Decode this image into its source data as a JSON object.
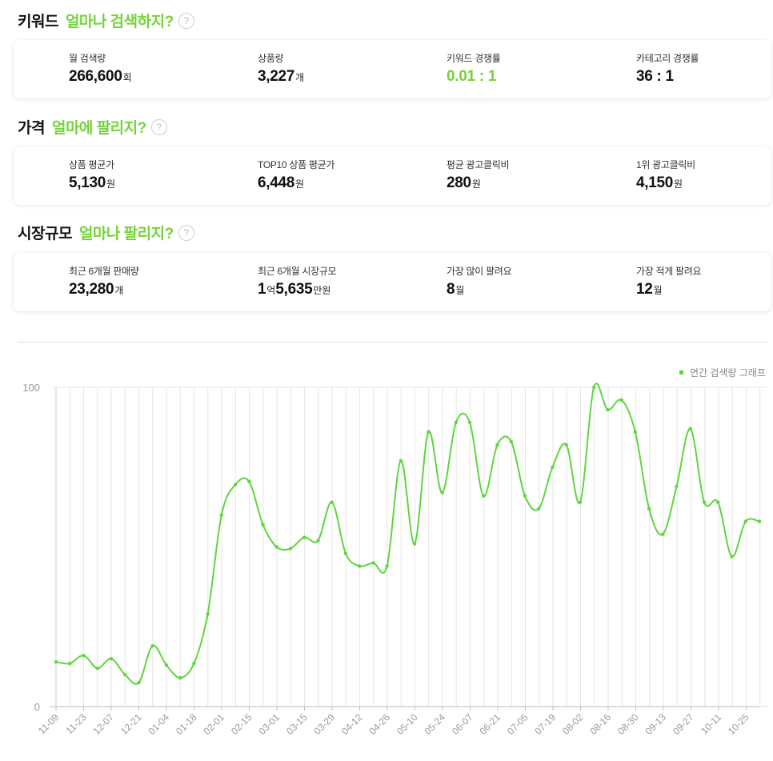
{
  "sections": {
    "keyword": {
      "title": "키워드",
      "accent": "얼마나 검색하지?",
      "help": "?"
    },
    "price": {
      "title": "가격",
      "accent": "얼마에 팔리지?",
      "help": "?"
    },
    "market": {
      "title": "시장규모",
      "accent": "얼마나 팔리지?",
      "help": "?"
    }
  },
  "keyword_stats": [
    {
      "label": "월 검색량",
      "value": "266,600",
      "unit": "회"
    },
    {
      "label": "상품량",
      "value": "3,227",
      "unit": "개"
    },
    {
      "label": "키워드 경쟁률",
      "value": "0.01 : 1",
      "unit": ""
    },
    {
      "label": "카테고리 경쟁률",
      "value": "36 : 1",
      "unit": ""
    }
  ],
  "price_stats": [
    {
      "label": "상품 평균가",
      "value": "5,130",
      "unit": "원"
    },
    {
      "label": "TOP10 상품 평균가",
      "value": "6,448",
      "unit": "원"
    },
    {
      "label": "평균 광고클릭비",
      "value": "280",
      "unit": "원"
    },
    {
      "label": "1위 광고클릭비",
      "value": "4,150",
      "unit": "원"
    }
  ],
  "market_stats": [
    {
      "label": "최근 6개월 판매량",
      "value": "23,280",
      "unit": "개"
    },
    {
      "label": "최근 6개월 시장규모",
      "value1": "1",
      "unit1": "억",
      "value2": "5,635",
      "unit2": "만원"
    },
    {
      "label": "가장 많이 팔려요",
      "value": "8",
      "unit": "월"
    },
    {
      "label": "가장 적게 팔려요",
      "value": "12",
      "unit": "월"
    }
  ],
  "colors": {
    "accent": "#76d23a",
    "line": "#5ed63f",
    "grid": "#e6e6e6"
  },
  "chart_data": {
    "type": "line",
    "title": "",
    "xlabel": "",
    "ylabel": "",
    "ylim": [
      0,
      100
    ],
    "yticks": [
      "0",
      "100"
    ],
    "grid": true,
    "legend_position": "top-right",
    "x_tick_labels": [
      "11-09",
      "11-23",
      "12-07",
      "12-21",
      "01-04",
      "01-18",
      "02-01",
      "02-15",
      "03-01",
      "03-15",
      "03-29",
      "04-12",
      "04-26",
      "05-10",
      "05-24",
      "06-07",
      "06-21",
      "07-05",
      "07-19",
      "08-02",
      "08-16",
      "08-30",
      "09-13",
      "09-27",
      "10-11",
      "10-25"
    ],
    "series": [
      {
        "name": "연간 검색량 그래프",
        "values": [
          14,
          13.5,
          16,
          12,
          15,
          10,
          7.5,
          19,
          13,
          9,
          13.5,
          29,
          60,
          69.5,
          70.5,
          57,
          50,
          49.5,
          53,
          52,
          64,
          48,
          44,
          45,
          44,
          77,
          51,
          86,
          67,
          89,
          89,
          66,
          82,
          83,
          66,
          62,
          75,
          82,
          64,
          100,
          93,
          96,
          86,
          62,
          54,
          69,
          87,
          64,
          64,
          47,
          58,
          58
        ]
      }
    ]
  }
}
